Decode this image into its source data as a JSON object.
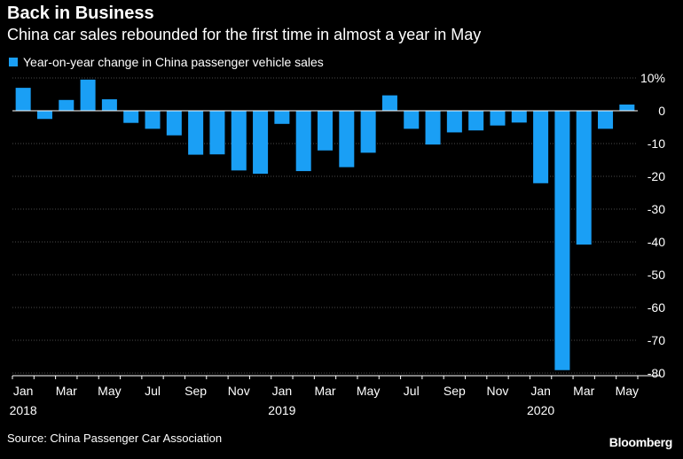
{
  "header": {
    "title": "Back in Business",
    "subtitle": "China car sales rebounded for the first time in almost a year in May"
  },
  "footer": {
    "source": "Source: China Passenger Car Association",
    "brand": "Bloomberg"
  },
  "colors": {
    "bar": "#1a9ff5",
    "background": "#000000",
    "grid": "#4a4a4a",
    "text": "#ffffff"
  },
  "chart_data": {
    "type": "bar",
    "legend": "Year-on-year change in China passenger vehicle sales",
    "categories": [
      "Jan 2018",
      "Feb 2018",
      "Mar 2018",
      "Apr 2018",
      "May 2018",
      "Jun 2018",
      "Jul 2018",
      "Aug 2018",
      "Sep 2018",
      "Oct 2018",
      "Nov 2018",
      "Dec 2018",
      "Jan 2019",
      "Feb 2019",
      "Mar 2019",
      "Apr 2019",
      "May 2019",
      "Jun 2019",
      "Jul 2019",
      "Aug 2019",
      "Sep 2019",
      "Oct 2019",
      "Nov 2019",
      "Dec 2019",
      "Jan 2020",
      "Feb 2020",
      "Mar 2020",
      "Apr 2020",
      "May 2020"
    ],
    "values": [
      7,
      -2.5,
      3.3,
      9.5,
      3.5,
      -3.7,
      -5.5,
      -7.5,
      -13.4,
      -13.3,
      -18.2,
      -19.2,
      -4,
      -18.4,
      -12.1,
      -17.2,
      -12.8,
      4.7,
      -5.5,
      -10.3,
      -6.6,
      -6,
      -4.5,
      -3.6,
      -22.1,
      -79.1,
      -40.8,
      -5.5,
      1.9
    ],
    "x_tick_labels": [
      {
        "month": "Jan",
        "year": "2018",
        "index": 0
      },
      {
        "month": "Mar",
        "year": "",
        "index": 2
      },
      {
        "month": "May",
        "year": "",
        "index": 4
      },
      {
        "month": "Jul",
        "year": "",
        "index": 6
      },
      {
        "month": "Sep",
        "year": "",
        "index": 8
      },
      {
        "month": "Nov",
        "year": "",
        "index": 10
      },
      {
        "month": "Jan",
        "year": "2019",
        "index": 12
      },
      {
        "month": "Mar",
        "year": "",
        "index": 14
      },
      {
        "month": "May",
        "year": "",
        "index": 16
      },
      {
        "month": "Jul",
        "year": "",
        "index": 18
      },
      {
        "month": "Sep",
        "year": "",
        "index": 20
      },
      {
        "month": "Nov",
        "year": "",
        "index": 22
      },
      {
        "month": "Jan",
        "year": "2020",
        "index": 24
      },
      {
        "month": "Mar",
        "year": "",
        "index": 26
      },
      {
        "month": "May",
        "year": "",
        "index": 28
      }
    ],
    "y_ticks": [
      10,
      0,
      -10,
      -20,
      -30,
      -40,
      -50,
      -60,
      -70,
      -80
    ],
    "y_tick_labels": [
      "10%",
      "0",
      "-10",
      "-20",
      "-30",
      "-40",
      "-50",
      "-60",
      "-70",
      "-80"
    ],
    "ylim": [
      -80.8,
      10
    ],
    "grid": true,
    "y_axis_position": "right"
  }
}
